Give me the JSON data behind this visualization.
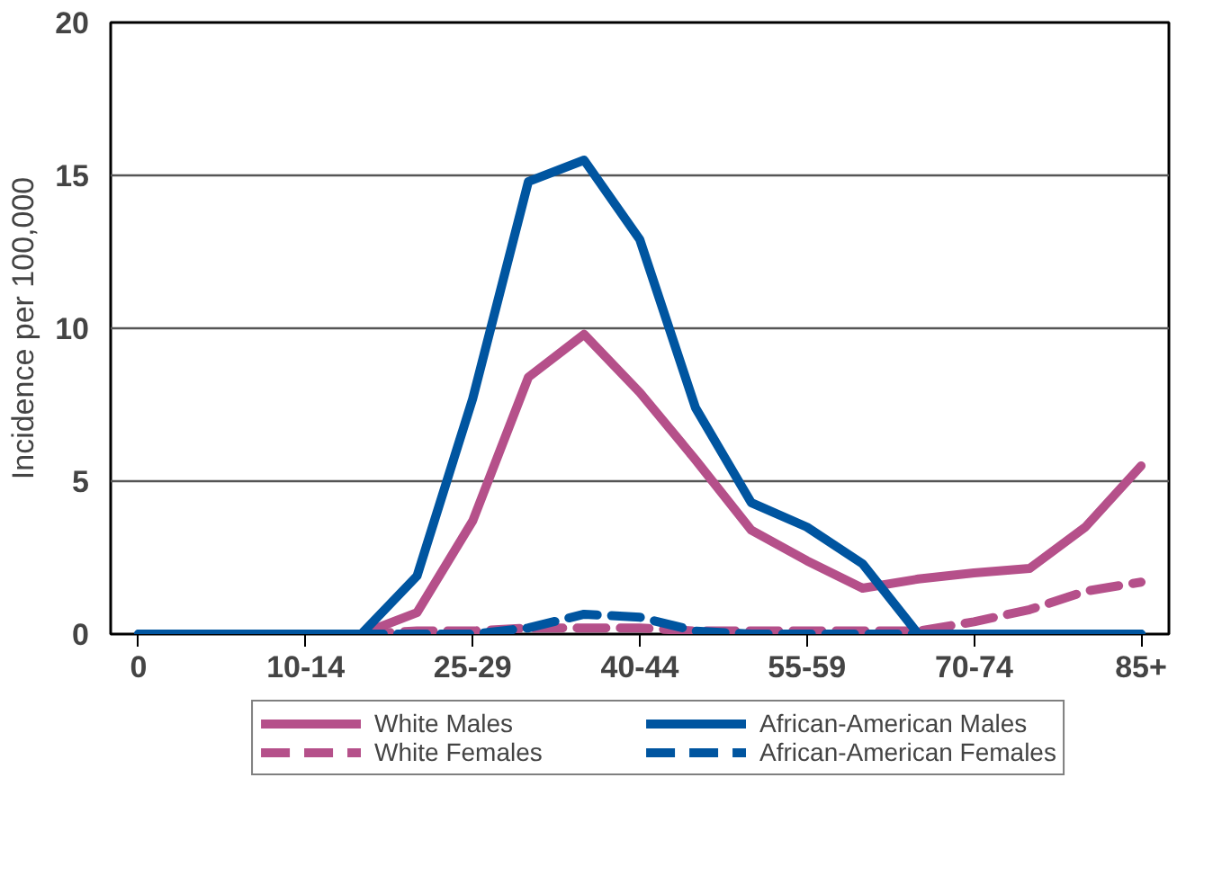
{
  "chart_data": {
    "type": "line",
    "ylabel": "Incidence per 100,000",
    "categories": [
      "0",
      null,
      null,
      "10-14",
      null,
      null,
      "25-29",
      null,
      null,
      "40-44",
      null,
      null,
      "55-59",
      null,
      null,
      "70-74",
      null,
      null,
      "85+"
    ],
    "ylim": [
      0,
      20
    ],
    "yticks": [
      0,
      5,
      10,
      15,
      20
    ],
    "grid": "y",
    "legend": "bottom",
    "series": [
      {
        "name": "White Males",
        "color": "#b5508a",
        "line_style": "solid",
        "values": [
          null,
          null,
          null,
          null,
          0,
          0.7,
          3.7,
          8.4,
          9.8,
          7.9,
          5.7,
          3.4,
          2.4,
          1.5,
          1.8,
          2.0,
          2.15,
          3.5,
          5.5
        ]
      },
      {
        "name": "White Females",
        "color": "#b5508a",
        "line_style": "dashed",
        "values": [
          null,
          null,
          null,
          null,
          0,
          0.1,
          0.1,
          0.2,
          0.2,
          0.2,
          0.1,
          0.1,
          0.1,
          0.1,
          0.1,
          0.4,
          0.8,
          1.4,
          1.7
        ]
      },
      {
        "name": "African-American Males",
        "color": "#0055a0",
        "line_style": "solid",
        "values": [
          0,
          0,
          0,
          0,
          0,
          1.9,
          7.7,
          14.8,
          15.5,
          12.9,
          7.4,
          4.3,
          3.5,
          2.3,
          0,
          0,
          0,
          0,
          0
        ]
      },
      {
        "name": "African-American Females",
        "color": "#0055a0",
        "line_style": "dashed",
        "values": [
          0,
          0,
          0,
          0,
          0,
          0,
          0,
          0.2,
          0.65,
          0.55,
          0.1,
          0,
          0,
          0,
          0,
          0,
          0,
          0,
          0
        ]
      }
    ]
  }
}
